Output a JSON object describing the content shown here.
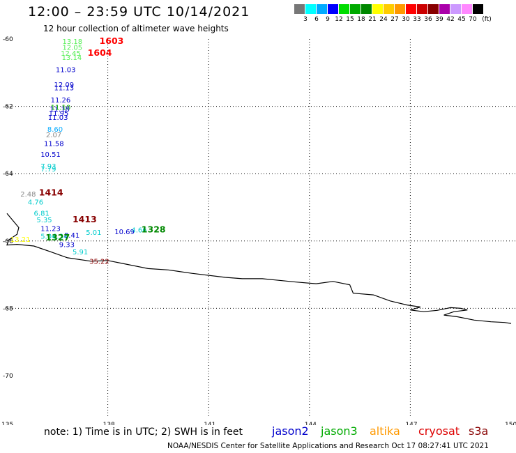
{
  "header": {
    "title": "12:00 – 23:59 UTC 10/14/2021",
    "subtitle": "12 hour collection of altimeter wave heights"
  },
  "color_scale": {
    "colors": [
      "#777777",
      "#00ffff",
      "#00aaff",
      "#0000ff",
      "#00dd00",
      "#00aa00",
      "#008800",
      "#ffff00",
      "#ffcc00",
      "#ff9900",
      "#ff0000",
      "#cc0000",
      "#880000",
      "#aa00aa",
      "#cc99ff",
      "#ff88ff",
      "#000000"
    ],
    "labels": [
      "3",
      "6",
      "9",
      "12",
      "15",
      "18",
      "21",
      "24",
      "27",
      "30",
      "33",
      "36",
      "39",
      "42",
      "45",
      "70"
    ],
    "unit": "(ft)"
  },
  "axes": {
    "lat_labels": [
      "-60",
      "-62",
      "-64",
      "-66",
      "-68",
      "-70"
    ],
    "lon_labels": [
      "135",
      "138",
      "141",
      "144",
      "147",
      "150"
    ]
  },
  "wave_heights": [
    {
      "text": "13.18",
      "color": "#55ee55",
      "lon": 136.65,
      "lat": -60.15
    },
    {
      "text": "12.05",
      "color": "#55ee55",
      "lon": 136.65,
      "lat": -60.32
    },
    {
      "text": "12.45",
      "color": "#55ee55",
      "lon": 136.6,
      "lat": -60.5
    },
    {
      "text": "13.14",
      "color": "#55ee55",
      "lon": 136.63,
      "lat": -60.62
    },
    {
      "text": "11.03",
      "color": "#0000cc",
      "lon": 136.45,
      "lat": -60.98
    },
    {
      "text": "12.09",
      "color": "#0000cc",
      "lon": 136.4,
      "lat": -61.43
    },
    {
      "text": "11.13",
      "color": "#0000cc",
      "lon": 136.4,
      "lat": -61.52
    },
    {
      "text": "11.26",
      "color": "#0000cc",
      "lon": 136.3,
      "lat": -61.88
    },
    {
      "text": "11.10",
      "color": "#00aa00",
      "lon": 136.3,
      "lat": -62.1
    },
    {
      "text": "11.18",
      "color": "#0000cc",
      "lon": 136.27,
      "lat": -62.15
    },
    {
      "text": "11.95",
      "color": "#0000cc",
      "lon": 136.24,
      "lat": -62.28
    },
    {
      "text": "11.03",
      "color": "#0000cc",
      "lon": 136.22,
      "lat": -62.4
    },
    {
      "text": "8.60",
      "color": "#00aaff",
      "lon": 136.2,
      "lat": -62.75
    },
    {
      "text": "2.07",
      "color": "#888888",
      "lon": 136.16,
      "lat": -62.92
    },
    {
      "text": "11.58",
      "color": "#0000cc",
      "lon": 136.1,
      "lat": -63.18
    },
    {
      "text": "10.51",
      "color": "#0000cc",
      "lon": 136.0,
      "lat": -63.5
    },
    {
      "text": "7.93",
      "color": "#00cccc",
      "lon": 136.0,
      "lat": -63.85
    },
    {
      "text": "7.79",
      "color": "#00cccc",
      "lon": 136.0,
      "lat": -63.93
    },
    {
      "text": "2.48",
      "color": "#888888",
      "lon": 135.4,
      "lat": -64.68
    },
    {
      "text": "4.76",
      "color": "#00cccc",
      "lon": 135.62,
      "lat": -64.92
    },
    {
      "text": "6.81",
      "color": "#00cccc",
      "lon": 135.8,
      "lat": -65.25
    },
    {
      "text": "5.35",
      "color": "#00cccc",
      "lon": 135.88,
      "lat": -65.45
    },
    {
      "text": "11.23",
      "color": "#0000cc",
      "lon": 136.0,
      "lat": -65.7
    },
    {
      "text": "5.04",
      "color": "#00cccc",
      "lon": 136.0,
      "lat": -65.93
    },
    {
      "text": "6.34",
      "color": "#00cccc",
      "lon": 136.35,
      "lat": -65.93
    },
    {
      "text": "8.41",
      "color": "#0000cc",
      "lon": 136.7,
      "lat": -65.9
    },
    {
      "text": "5.01",
      "color": "#00cccc",
      "lon": 137.35,
      "lat": -65.82
    },
    {
      "text": "10.69",
      "color": "#0000cc",
      "lon": 138.2,
      "lat": -65.8
    },
    {
      "text": "4.66",
      "color": "#00cccc",
      "lon": 138.7,
      "lat": -65.75
    },
    {
      "text": "13.21",
      "color": "#ffff00",
      "lon": 135.1,
      "lat": -66.02
    },
    {
      "text": "9.33",
      "color": "#0000cc",
      "lon": 136.55,
      "lat": -66.18
    },
    {
      "text": "5.91",
      "color": "#00cccc",
      "lon": 136.95,
      "lat": -66.4
    },
    {
      "text": "35.22",
      "color": "#880000",
      "lon": 137.45,
      "lat": -66.68
    }
  ],
  "pass_labels": [
    {
      "text": "1603",
      "color": "#ff0000",
      "lon": 137.75,
      "lat": -60.15
    },
    {
      "text": "1604",
      "color": "#ff0000",
      "lon": 137.4,
      "lat": -60.5
    },
    {
      "text": "1414",
      "color": "#880000",
      "lon": 135.95,
      "lat": -64.65
    },
    {
      "text": "1413",
      "color": "#880000",
      "lon": 136.95,
      "lat": -65.45
    },
    {
      "text": "1327",
      "color": "#008800",
      "lon": 136.15,
      "lat": -65.98
    },
    {
      "text": "1328",
      "color": "#008800",
      "lon": 139.0,
      "lat": -65.75
    }
  ],
  "footer": {
    "note": "note:  1) Time is in UTC;  2) SWH is in feet",
    "satellites": [
      {
        "name": "jason2",
        "color": "#0000cc"
      },
      {
        "name": "jason3",
        "color": "#00aa00"
      },
      {
        "name": "altika",
        "color": "#ff9900"
      },
      {
        "name": "cryosat",
        "color": "#dd0000"
      },
      {
        "name": "s3a",
        "color": "#880000"
      }
    ],
    "credit": "NOAA/NESDIS Center for Satellite Applications and Research     Oct 17 08:27:41 UTC 2021"
  }
}
